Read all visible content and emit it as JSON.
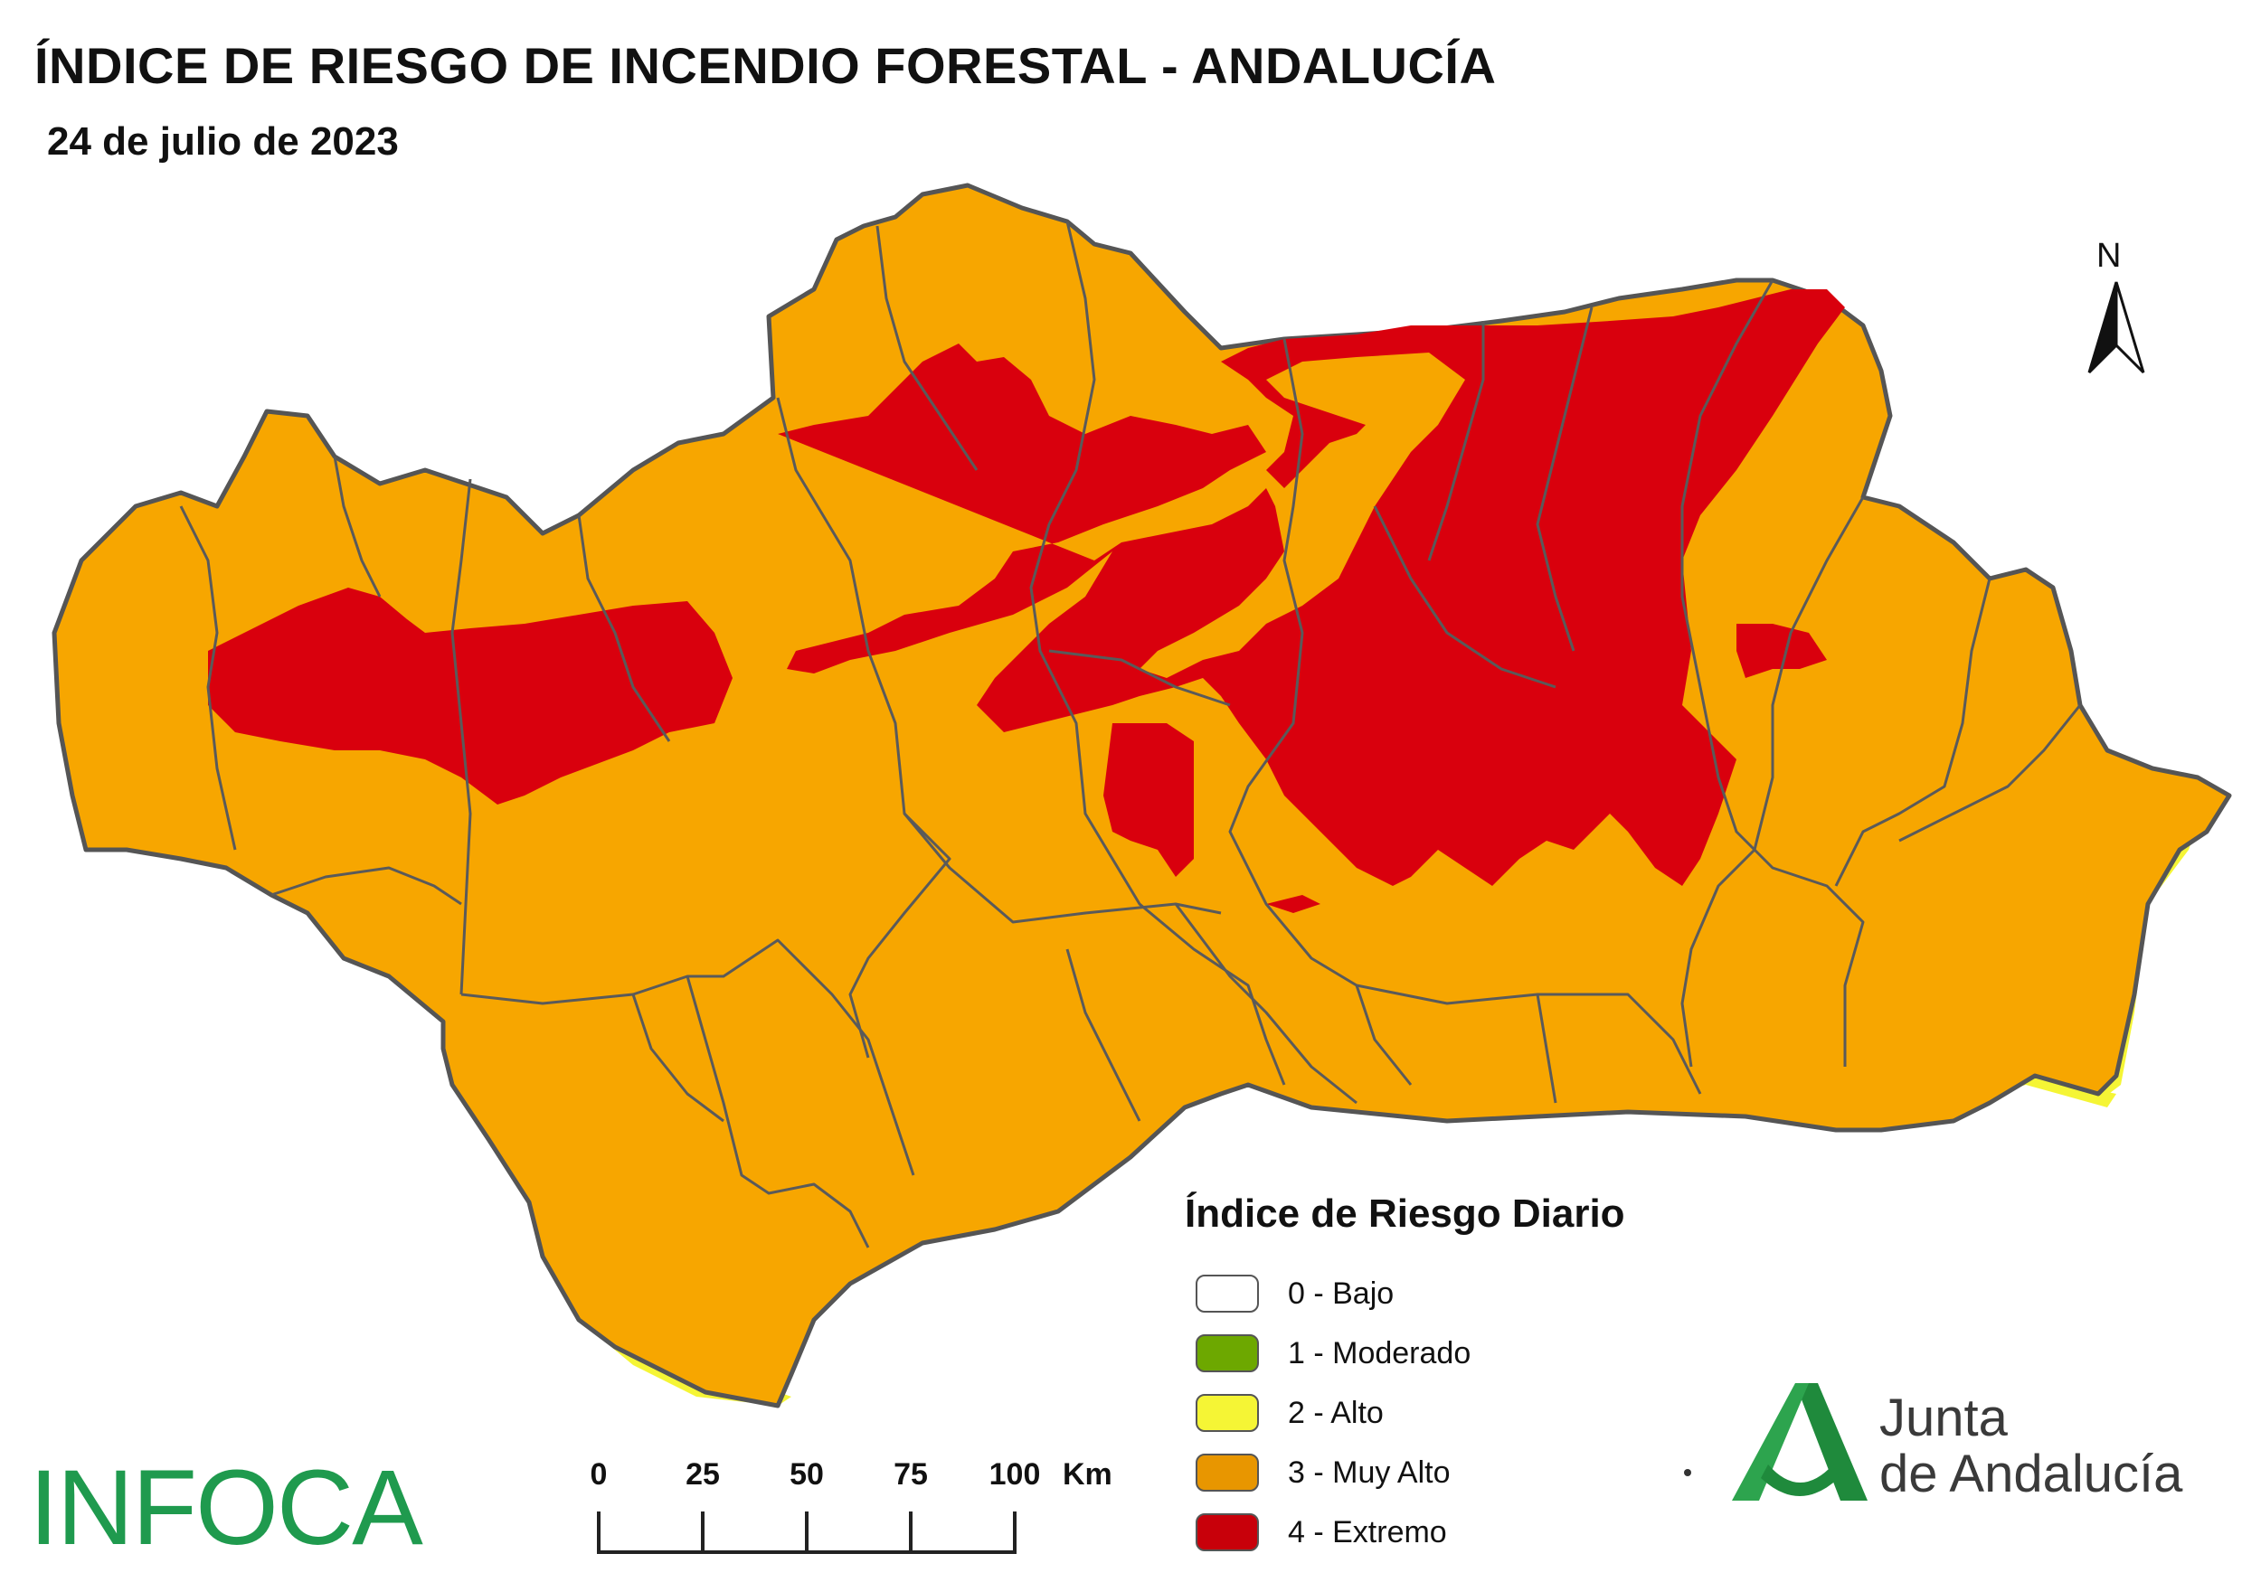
{
  "map": {
    "title": "ÍNDICE DE RIESGO DE INCENDIO FORESTAL - ANDALUCÍA",
    "date": "24 de julio de 2023",
    "region": "Andalucía",
    "colors": {
      "muy_alto": "#F7A600",
      "extremo": "#D9000D",
      "alto": "#F5F535",
      "moderado": "#6DA800",
      "bajo": "#FFFFFF",
      "borders": "#555555"
    }
  },
  "north_arrow": {
    "label": "N"
  },
  "legend": {
    "title": "Índice de Riesgo Diario",
    "items": [
      {
        "label": "0 - Bajo",
        "color": "#FFFFFF"
      },
      {
        "label": "1 - Moderado",
        "color": "#6DA800"
      },
      {
        "label": "2 - Alto",
        "color": "#F5F535"
      },
      {
        "label": "3 - Muy Alto",
        "color": "#E89600"
      },
      {
        "label": "4 - Extremo",
        "color": "#C8000A"
      }
    ]
  },
  "scale_bar": {
    "ticks": [
      "0",
      "25",
      "50",
      "75",
      "100"
    ],
    "unit": "Km"
  },
  "logos": {
    "infoca": "INFOCA",
    "junta_line1": "Junta",
    "junta_line2": "de Andalucía"
  }
}
